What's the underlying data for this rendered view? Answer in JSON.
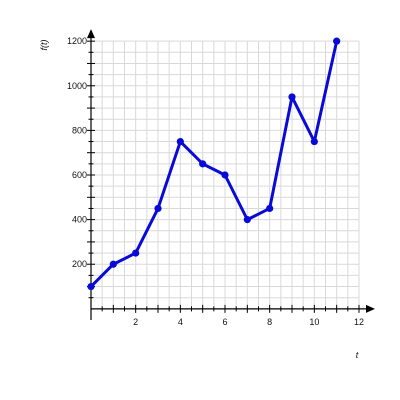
{
  "chart_data": {
    "type": "line",
    "xlabel": "t",
    "ylabel": "f(t)",
    "xlim": [
      0,
      12
    ],
    "ylim": [
      -50,
      1250
    ],
    "x_ticks": [
      2,
      4,
      6,
      8,
      10,
      12
    ],
    "y_ticks": [
      200,
      400,
      600,
      800,
      1000,
      1200
    ],
    "grid": true,
    "grid_x_step": 0.5,
    "grid_y_step": 50,
    "series": [
      {
        "x": [
          0,
          1,
          2,
          3,
          4,
          5,
          6,
          7,
          8,
          9,
          10,
          11
        ],
        "y": [
          100,
          200,
          250,
          450,
          750,
          650,
          600,
          400,
          450,
          950,
          750,
          1200
        ],
        "color": "#0a0ad8"
      }
    ]
  }
}
